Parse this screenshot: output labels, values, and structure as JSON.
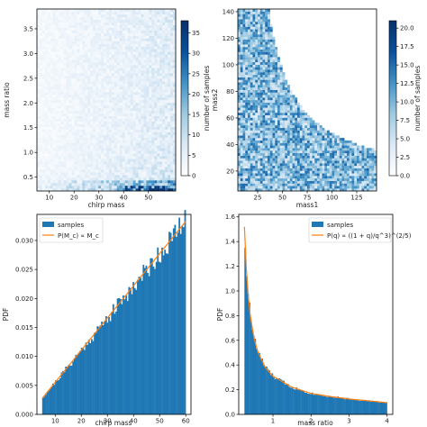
{
  "chart_data": [
    {
      "type": "heatmap",
      "xlabel": "chirp mass",
      "ylabel": "mass ratio",
      "xlim": [
        5,
        61
      ],
      "ylim": [
        0.22,
        3.9
      ],
      "xticks": [
        10,
        20,
        30,
        40,
        50
      ],
      "yticks": [
        0.5,
        1.0,
        1.5,
        2.0,
        2.5,
        3.0,
        3.5
      ],
      "xtick_labels": [
        "10",
        "20",
        "30",
        "40",
        "50"
      ],
      "ytick_labels": [
        "0.5",
        "1.0",
        "1.5",
        "2.0",
        "2.5",
        "3.0",
        "3.5"
      ],
      "colorbar": {
        "label": "number of samples",
        "range": [
          0,
          38
        ],
        "ticks": [
          0,
          5,
          10,
          15,
          20,
          25,
          30,
          35
        ],
        "tick_labels": [
          "0",
          "5",
          "10",
          "15",
          "20",
          "25",
          "30",
          "35"
        ]
      },
      "colormap": [
        "#ffffff",
        "#dbe9f6",
        "#9ecae1",
        "#4292c6",
        "#08519c",
        "#08306b"
      ]
    },
    {
      "type": "heatmap",
      "xlabel": "mass1",
      "ylabel": "mass2",
      "xlim": [
        5,
        145
      ],
      "ylim": [
        5,
        142
      ],
      "xticks": [
        25,
        50,
        75,
        100,
        125
      ],
      "yticks": [
        20,
        40,
        60,
        80,
        100,
        120,
        140
      ],
      "xtick_labels": [
        "25",
        "50",
        "75",
        "100",
        "125"
      ],
      "ytick_labels": [
        "20",
        "40",
        "60",
        "80",
        "100",
        "120",
        "140"
      ],
      "region_boundary": {
        "vertices": [
          [
            5,
            10
          ],
          [
            5,
            42
          ],
          [
            35,
            140
          ],
          [
            140,
            35
          ],
          [
            42,
            5
          ]
        ]
      },
      "colorbar": {
        "label": "number of samples",
        "range": [
          0,
          21
        ],
        "ticks": [
          0.0,
          2.5,
          5.0,
          7.5,
          10.0,
          12.5,
          15.0,
          17.5,
          20.0
        ],
        "tick_labels": [
          "0.0",
          "2.5",
          "5.0",
          "7.5",
          "10.0",
          "12.5",
          "15.0",
          "17.5",
          "20.0"
        ]
      },
      "colormap": [
        "#ffffff",
        "#dbe9f6",
        "#9ecae1",
        "#4292c6",
        "#08519c",
        "#08306b"
      ]
    },
    {
      "type": "bar",
      "xlabel": "chirp mass",
      "ylabel": "PDF",
      "xlim": [
        3,
        62
      ],
      "ylim": [
        0,
        0.0345
      ],
      "xticks": [
        10,
        20,
        30,
        40,
        50,
        60
      ],
      "yticks": [
        0.0,
        0.005,
        0.01,
        0.015,
        0.02,
        0.025,
        0.03
      ],
      "xtick_labels": [
        "10",
        "20",
        "30",
        "40",
        "50",
        "60"
      ],
      "ytick_labels": [
        "0.000",
        "0.005",
        "0.010",
        "0.015",
        "0.020",
        "0.025",
        "0.030"
      ],
      "histogram": {
        "range": [
          5,
          60
        ],
        "bins": 100,
        "color": "#1f77b4"
      },
      "curve": {
        "type": "line",
        "x": [
          5,
          60
        ],
        "y": [
          0.00275,
          0.0333
        ],
        "color": "#ff7f0e"
      },
      "legend": {
        "position": "upper-left",
        "entries": [
          {
            "label": "samples",
            "kind": "patch",
            "color": "#1f77b4"
          },
          {
            "label": "P(M_c) ∝ M_c",
            "kind": "line",
            "color": "#ff7f0e"
          }
        ]
      }
    },
    {
      "type": "bar",
      "xlabel": "mass ratio",
      "ylabel": "PDF",
      "xlim": [
        0.1,
        4.15
      ],
      "ylim": [
        0,
        1.62
      ],
      "xticks": [
        1,
        2,
        3,
        4
      ],
      "yticks": [
        0.0,
        0.2,
        0.4,
        0.6,
        0.8,
        1.0,
        1.2,
        1.4,
        1.6
      ],
      "xtick_labels": [
        "1",
        "2",
        "3",
        "4"
      ],
      "ytick_labels": [
        "0.0",
        "0.2",
        "0.4",
        "0.6",
        "0.8",
        "1.0",
        "1.2",
        "1.4",
        "1.6"
      ],
      "histogram": {
        "range": [
          0.25,
          4.0
        ],
        "bins": 100,
        "color": "#1f77b4"
      },
      "curve": {
        "type": "line",
        "x": [
          0.25,
          0.3,
          0.35,
          0.4,
          0.5,
          0.6,
          0.8,
          1.0,
          1.5,
          2.0,
          2.5,
          3.0,
          3.5,
          4.0
        ],
        "y": [
          1.52,
          1.18,
          0.96,
          0.81,
          0.62,
          0.51,
          0.38,
          0.31,
          0.22,
          0.17,
          0.145,
          0.125,
          0.11,
          0.095
        ],
        "color": "#ff7f0e"
      },
      "legend": {
        "position": "upper-right",
        "entries": [
          {
            "label": "samples",
            "kind": "patch",
            "color": "#1f77b4"
          },
          {
            "label": "P(q) ∝ ((1 + q)/q^3)^(2/5)",
            "kind": "line",
            "color": "#ff7f0e"
          }
        ]
      }
    }
  ]
}
